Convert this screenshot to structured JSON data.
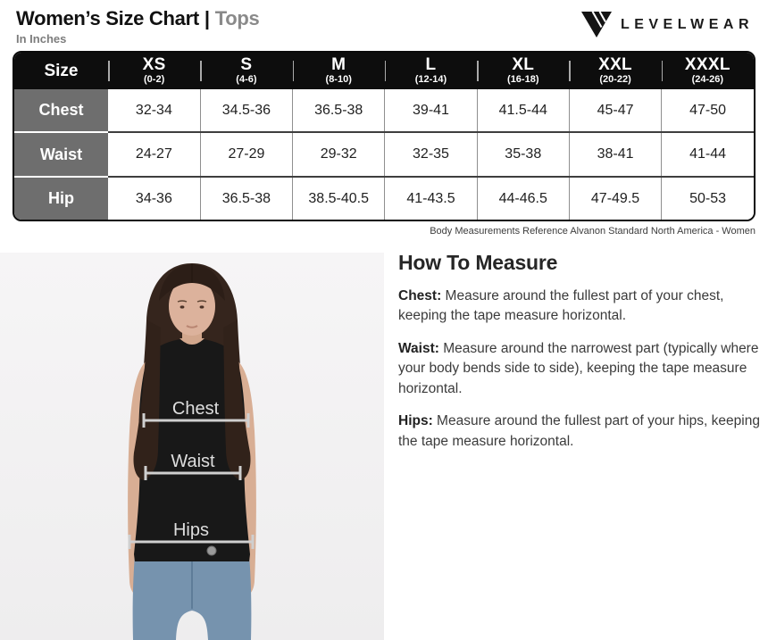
{
  "header": {
    "title": "Women’s Size Chart",
    "divider": "|",
    "category": "Tops",
    "units": "In Inches",
    "brand": "LEVELWEAR"
  },
  "size_table": {
    "corner_label": "Size",
    "columns": [
      {
        "size": "XS",
        "range": "(0-2)"
      },
      {
        "size": "S",
        "range": "(4-6)"
      },
      {
        "size": "M",
        "range": "(8-10)"
      },
      {
        "size": "L",
        "range": "(12-14)"
      },
      {
        "size": "XL",
        "range": "(16-18)"
      },
      {
        "size": "XXL",
        "range": "(20-22)"
      },
      {
        "size": "XXXL",
        "range": "(24-26)"
      }
    ],
    "rows": [
      {
        "label": "Chest",
        "values": [
          "32-34",
          "34.5-36",
          "36.5-38",
          "39-41",
          "41.5-44",
          "45-47",
          "47-50"
        ]
      },
      {
        "label": "Waist",
        "values": [
          "24-27",
          "27-29",
          "29-32",
          "32-35",
          "35-38",
          "38-41",
          "41-44"
        ]
      },
      {
        "label": "Hip",
        "values": [
          "34-36",
          "36.5-38",
          "38.5-40.5",
          "41-43.5",
          "44-46.5",
          "47-49.5",
          "50-53"
        ]
      }
    ],
    "footnote": "Body Measurements Reference Alvanon Standard North America - Women"
  },
  "photo": {
    "labels": {
      "chest": "Chest",
      "waist": "Waist",
      "hips": "Hips"
    }
  },
  "how_to_measure": {
    "title": "How To Measure",
    "items": [
      {
        "term": "Chest:",
        "description": " Measure around the fullest part of your chest, keeping the tape measure horizontal."
      },
      {
        "term": "Waist:",
        "description": " Measure around the narrowest part (typically where your body bends side to side), keeping the tape measure horizontal."
      },
      {
        "term": "Hips:",
        "description": " Measure around the fullest part of your hips, keeping the tape measure horizontal."
      }
    ]
  },
  "colors": {
    "header_black": "#0d0d0d",
    "row_label_gray": "#6e6e6e",
    "category_gray": "#8a8a8a",
    "photo_background": "#f4f3f4",
    "measure_line": "#cfcfcf"
  }
}
